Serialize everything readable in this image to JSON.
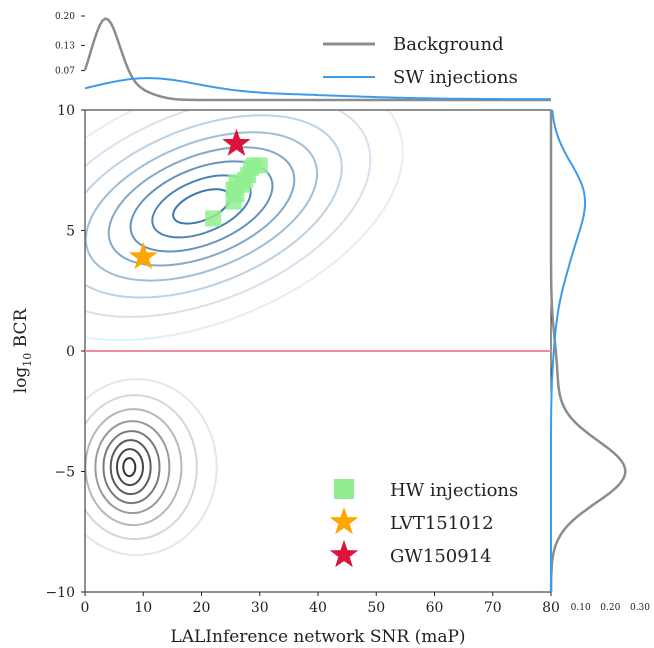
{
  "chart_data": {
    "type": "scatter",
    "xlabel": "LALInference network SNR (maP)",
    "ylabel_main": "log",
    "ylabel_sub": "10",
    "ylabel_tail": " BCR",
    "xlim": [
      0,
      80
    ],
    "ylim": [
      -10,
      10
    ],
    "xticks": [
      "0",
      "10",
      "20",
      "30",
      "40",
      "50",
      "60",
      "70",
      "80"
    ],
    "yticks": [
      "−10",
      "−5",
      "0",
      "5",
      "10"
    ],
    "threshold_line_y": 0,
    "top_marginal_ticks": [
      "0.07",
      "0.13",
      "0.20"
    ],
    "right_marginal_ticks": [
      "0.10",
      "0.20",
      "0.30"
    ],
    "series": [
      {
        "name": "HW injections",
        "marker": "square",
        "color": "#90ee90",
        "points": [
          [
            22,
            5.5
          ],
          [
            25.5,
            6.2
          ],
          [
            26,
            6.5
          ],
          [
            26,
            7.0
          ],
          [
            25.5,
            6.7
          ],
          [
            27,
            6.9
          ],
          [
            27.5,
            7.1
          ],
          [
            28,
            7.3
          ],
          [
            28.5,
            7.6
          ],
          [
            29,
            7.7
          ],
          [
            30,
            7.7
          ]
        ]
      },
      {
        "name": "LVT151012",
        "marker": "star",
        "color": "#ffa500",
        "points": [
          [
            10,
            3.9
          ]
        ]
      },
      {
        "name": "GW150914",
        "marker": "star",
        "color": "#dc143c",
        "points": [
          [
            26,
            8.6
          ]
        ]
      }
    ],
    "contours": [
      {
        "name": "Background",
        "color": "#808080",
        "center": [
          7.5,
          -4.9
        ]
      },
      {
        "name": "SW injections",
        "color": "#4a8fc9",
        "center": [
          20,
          6.0
        ]
      }
    ],
    "marginal_top": [
      {
        "name": "Background",
        "color": "#8c8c8c"
      },
      {
        "name": "SW injections",
        "color": "#3d9be9"
      }
    ],
    "legend_top": [
      "Background",
      "SW injections"
    ],
    "legend_bottom": [
      "HW injections",
      "LVT151012",
      "GW150914"
    ]
  }
}
